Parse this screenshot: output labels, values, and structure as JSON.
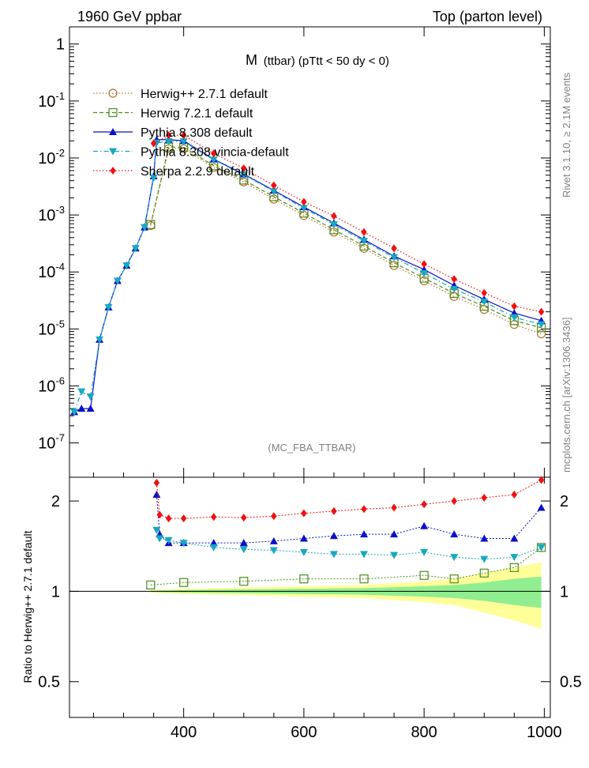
{
  "header": {
    "left": "1960 GeV ppbar",
    "right": "Top (parton level)"
  },
  "side": {
    "rivet": "Rivet 3.1.10, ≥ 2.1M events",
    "mcplots": "mcplots.cern.ch [arXiv:1306.3436]"
  },
  "plot_title_main": "M",
  "plot_title_sub": "(ttbar) (pTtt < 50 dy < 0)",
  "analysis_tag": "(MC_FBA_TTBAR)",
  "ratio_ylabel": "Ratio to Herwig++ 2.7.1 default",
  "colors": {
    "herwigpp": "#b8732e",
    "herwig7": "#4c8c1a",
    "pythia": "#0a10c8",
    "vincia": "#18a8c0",
    "sherpa": "#f01010",
    "band_yellow": "#ffff99",
    "band_green": "#90ee90"
  },
  "chart_data": [
    {
      "type": "scatter",
      "yscale": "log",
      "xlim": [
        210,
        1010
      ],
      "ylim": [
        2.5e-08,
        2.0
      ],
      "y_ticks": [
        {
          "v": 1,
          "label": "1"
        },
        {
          "v": 0.1,
          "label": "10-1"
        },
        {
          "v": 0.01,
          "label": "10-2"
        },
        {
          "v": 0.001,
          "label": "10-3"
        },
        {
          "v": 0.0001,
          "label": "10-4"
        },
        {
          "v": 1e-05,
          "label": "10-5"
        },
        {
          "v": 1e-06,
          "label": "10-6"
        },
        {
          "v": 1e-07,
          "label": "10-7"
        }
      ],
      "legend_position": "top-left",
      "series": [
        {
          "name": "Herwig++ 2.7.1 default",
          "key": "herwigpp",
          "marker": "circle-open",
          "line": "dotted",
          "x": [
            345,
            375,
            400,
            450,
            500,
            550,
            600,
            650,
            700,
            750,
            800,
            850,
            900,
            950,
            995
          ],
          "y": [
            0.00065,
            0.0145,
            0.0145,
            0.0068,
            0.0038,
            0.0019,
            0.00098,
            0.0005,
            0.00026,
            0.00013,
            7e-05,
            3.7e-05,
            2.2e-05,
            1.2e-05,
            8.2e-06
          ]
        },
        {
          "name": "Herwig 7.2.1 default",
          "key": "herwig7",
          "marker": "square-open",
          "line": "dashed",
          "x": [
            345,
            375,
            400,
            450,
            500,
            550,
            600,
            650,
            700,
            750,
            800,
            850,
            900,
            950,
            995
          ],
          "y": [
            0.00068,
            0.0155,
            0.0155,
            0.0073,
            0.0041,
            0.00209,
            0.00108,
            0.00055,
            0.000285,
            0.000145,
            7.8e-05,
            4.2e-05,
            2.5e-05,
            1.4e-05,
            1.05e-05
          ]
        },
        {
          "name": "Pythia 8.308 default",
          "key": "pythia",
          "marker": "triangle-up",
          "line": "solid",
          "x": [
            218,
            230,
            245,
            260,
            275,
            290,
            305,
            320,
            335,
            350,
            355,
            375,
            400,
            450,
            500,
            550,
            600,
            650,
            700,
            750,
            800,
            850,
            900,
            950,
            995
          ],
          "y": [
            3.5e-07,
            4e-07,
            4e-07,
            6.5e-06,
            2.4e-05,
            7e-05,
            0.00013,
            0.00026,
            0.00061,
            0.0048,
            0.021,
            0.021,
            0.02,
            0.0095,
            0.0052,
            0.0027,
            0.00138,
            0.00072,
            0.00037,
            0.00019,
            0.00011,
            5.8e-05,
            3.3e-05,
            1.9e-05,
            1.4e-05
          ]
        },
        {
          "name": "Pythia 8.308 vincia-default",
          "key": "vincia",
          "marker": "triangle-down",
          "line": "dashdot",
          "x": [
            218,
            230,
            245,
            260,
            275,
            290,
            305,
            320,
            335,
            350,
            355,
            375,
            400,
            450,
            500,
            550,
            600,
            650,
            700,
            750,
            800,
            850,
            900,
            950,
            995
          ],
          "y": [
            3.5e-07,
            8e-07,
            6.5e-07,
            6.5e-06,
            2.4e-05,
            7e-05,
            0.00013,
            0.00026,
            0.00061,
            0.0045,
            0.0185,
            0.0195,
            0.0195,
            0.0093,
            0.0051,
            0.0026,
            0.00132,
            0.00068,
            0.00035,
            0.00018,
            9.5e-05,
            5e-05,
            3e-05,
            1.6e-05,
            1.2e-05
          ]
        },
        {
          "name": "Sherpa 2.2.9 default",
          "key": "sherpa",
          "marker": "diamond",
          "line": "dotted",
          "x": [
            350,
            375,
            400,
            450,
            500,
            550,
            600,
            650,
            700,
            750,
            800,
            850,
            900,
            950,
            995
          ],
          "y": [
            0.018,
            0.025,
            0.025,
            0.012,
            0.0066,
            0.0033,
            0.0017,
            0.00096,
            0.0005,
            0.00026,
            0.000138,
            7.5e-05,
            4.3e-05,
            2.5e-05,
            2e-05
          ]
        }
      ]
    },
    {
      "type": "scatter",
      "yscale": "log",
      "xlim": [
        210,
        1010
      ],
      "ylim": [
        0.38,
        2.4
      ],
      "y_ticks": [
        {
          "v": 0.5,
          "label": "0.5"
        },
        {
          "v": 1,
          "label": "1"
        },
        {
          "v": 2,
          "label": "2"
        }
      ],
      "x_ticks": [
        {
          "v": 400,
          "label": "400"
        },
        {
          "v": 600,
          "label": "600"
        },
        {
          "v": 800,
          "label": "800"
        },
        {
          "v": 1000,
          "label": "1000"
        }
      ],
      "series": [
        {
          "name": "Herwig 7.2.1 default",
          "key": "herwig7",
          "x": [
            345,
            400,
            500,
            600,
            700,
            800,
            850,
            900,
            950,
            995
          ],
          "y": [
            1.05,
            1.07,
            1.08,
            1.1,
            1.1,
            1.13,
            1.1,
            1.15,
            1.2,
            1.4
          ]
        },
        {
          "name": "Pythia 8.308 default",
          "key": "pythia",
          "x": [
            355,
            360,
            375,
            400,
            450,
            500,
            550,
            600,
            650,
            700,
            750,
            800,
            850,
            900,
            950,
            995
          ],
          "y": [
            2.1,
            1.55,
            1.45,
            1.45,
            1.45,
            1.45,
            1.47,
            1.5,
            1.53,
            1.55,
            1.55,
            1.65,
            1.55,
            1.5,
            1.5,
            1.9
          ]
        },
        {
          "name": "Pythia 8.308 vincia-default",
          "key": "vincia",
          "x": [
            355,
            360,
            375,
            400,
            450,
            500,
            550,
            600,
            650,
            700,
            750,
            800,
            850,
            900,
            950,
            995
          ],
          "y": [
            1.6,
            1.5,
            1.48,
            1.45,
            1.4,
            1.38,
            1.37,
            1.35,
            1.33,
            1.33,
            1.32,
            1.35,
            1.3,
            1.28,
            1.3,
            1.4
          ]
        },
        {
          "name": "Sherpa 2.2.9 default",
          "key": "sherpa",
          "x": [
            355,
            360,
            375,
            400,
            450,
            500,
            550,
            600,
            650,
            700,
            750,
            800,
            850,
            900,
            950,
            995
          ],
          "y": [
            2.3,
            1.8,
            1.75,
            1.75,
            1.77,
            1.76,
            1.78,
            1.82,
            1.85,
            1.88,
            1.9,
            1.95,
            2.0,
            2.05,
            2.1,
            2.35
          ]
        }
      ],
      "bands": {
        "x": [
          345,
          400,
          500,
          600,
          700,
          800,
          850,
          900,
          950,
          995
        ],
        "yellow_lo": [
          0.99,
          0.98,
          0.97,
          0.96,
          0.95,
          0.92,
          0.9,
          0.85,
          0.8,
          0.75
        ],
        "yellow_hi": [
          1.01,
          1.02,
          1.03,
          1.04,
          1.05,
          1.08,
          1.1,
          1.15,
          1.2,
          1.25
        ],
        "green_lo": [
          0.995,
          0.99,
          0.985,
          0.98,
          0.975,
          0.96,
          0.95,
          0.93,
          0.9,
          0.88
        ],
        "green_hi": [
          1.005,
          1.01,
          1.015,
          1.02,
          1.025,
          1.04,
          1.05,
          1.07,
          1.1,
          1.12
        ]
      }
    }
  ]
}
